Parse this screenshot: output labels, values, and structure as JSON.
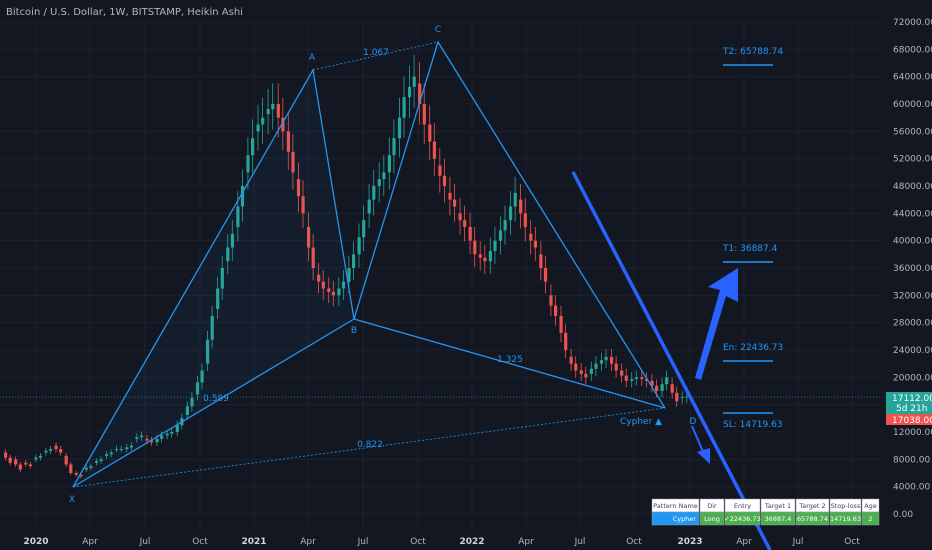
{
  "header": {
    "title": "Bitcoin / U.S. Dollar, 1W, BITSTAMP, Heikin Ashi"
  },
  "chart_data": {
    "type": "candlestick",
    "title": "Bitcoin / U.S. Dollar, 1W, BITSTAMP, Heikin Ashi",
    "y_ticks": [
      "72000.00",
      "68000.00",
      "64000.00",
      "60000.00",
      "56000.00",
      "52000.00",
      "48000.00",
      "44000.00",
      "40000.00",
      "36000.00",
      "32000.00",
      "28000.00",
      "24000.00",
      "20000.00",
      "16000.00",
      "12000.00",
      "8000.00",
      "4000.00",
      "0.00"
    ],
    "x_ticks": [
      "2020",
      "Apr",
      "Jul",
      "Oct",
      "2021",
      "Apr",
      "Jul",
      "Oct",
      "2022",
      "Apr",
      "Jul",
      "Oct",
      "2023",
      "Apr",
      "Jul",
      "Oct"
    ],
    "x_ticks_bold": [
      "2020",
      "2021",
      "2022",
      "2023"
    ],
    "ylim": [
      -2000,
      74000
    ],
    "candles_approx": [
      [
        0,
        9,
        7.5
      ],
      [
        1,
        8,
        6.5
      ],
      [
        2,
        7.5,
        7
      ],
      [
        3,
        8,
        8.5
      ],
      [
        4,
        9,
        9.5
      ],
      [
        5,
        10,
        9
      ],
      [
        6,
        8.5,
        6
      ],
      [
        7,
        6,
        5.5
      ],
      [
        8,
        6.5,
        7
      ],
      [
        9,
        7.5,
        8
      ],
      [
        10,
        8.5,
        9
      ],
      [
        11,
        9.5,
        9.5
      ],
      [
        12,
        9.5,
        10
      ],
      [
        13,
        11,
        11.5
      ],
      [
        14,
        11,
        10.5
      ],
      [
        15,
        10.5,
        11.5
      ],
      [
        16,
        11.5,
        12
      ],
      [
        17,
        12,
        14
      ],
      [
        18,
        14.5,
        17
      ],
      [
        19,
        17.5,
        21
      ],
      [
        20,
        22,
        29
      ],
      [
        21,
        30,
        36
      ],
      [
        22,
        37,
        41
      ],
      [
        23,
        42,
        48
      ],
      [
        24,
        50,
        55
      ],
      [
        25,
        56,
        58
      ],
      [
        26,
        58.5,
        60
      ],
      [
        27,
        60,
        56
      ],
      [
        28,
        56,
        50
      ],
      [
        29,
        49,
        44
      ],
      [
        30,
        42,
        36
      ],
      [
        31,
        35,
        33
      ],
      [
        32,
        33,
        32
      ],
      [
        33,
        32,
        34
      ],
      [
        34,
        34,
        38
      ],
      [
        35,
        38,
        43
      ],
      [
        36,
        44,
        48
      ],
      [
        37,
        48,
        50
      ],
      [
        38,
        50,
        55
      ],
      [
        39,
        55,
        61
      ],
      [
        40,
        61,
        64
      ],
      [
        41,
        63,
        57
      ],
      [
        42,
        57,
        52
      ],
      [
        43,
        51,
        48
      ],
      [
        44,
        47,
        45
      ],
      [
        45,
        44,
        42
      ],
      [
        46,
        42,
        38
      ],
      [
        47,
        38,
        37
      ],
      [
        48,
        37,
        40
      ],
      [
        49,
        40,
        43
      ],
      [
        50,
        43,
        47
      ],
      [
        51,
        46,
        42
      ],
      [
        52,
        41,
        39
      ],
      [
        53,
        38,
        34
      ],
      [
        54,
        32,
        29
      ],
      [
        55,
        29,
        24
      ],
      [
        56,
        23,
        21
      ],
      [
        57,
        21,
        20
      ],
      [
        58,
        20.5,
        22
      ],
      [
        59,
        22,
        23
      ],
      [
        60,
        23,
        21
      ],
      [
        61,
        21,
        19.5
      ],
      [
        62,
        19.5,
        20
      ],
      [
        63,
        20,
        19.5
      ],
      [
        64,
        19.5,
        18
      ],
      [
        65,
        18,
        20
      ],
      [
        66,
        19,
        16.5
      ],
      [
        67,
        17,
        17.2
      ]
    ],
    "pattern": {
      "name": "Cypher",
      "points": [
        {
          "label": "X",
          "value": 4000
        },
        {
          "label": "A",
          "value": 65000
        },
        {
          "label": "B",
          "value": 29000
        },
        {
          "label": "C",
          "value": 69000
        },
        {
          "label": "D",
          "value": 15500
        }
      ],
      "ratios": [
        {
          "label": "0.589"
        },
        {
          "label": "1.067"
        },
        {
          "label": "1.325"
        },
        {
          "label": "0.822"
        }
      ]
    },
    "levels": [
      {
        "label": "T2: 65788.74",
        "value": 65788.74
      },
      {
        "label": "T1: 36887.4",
        "value": 36887.4
      },
      {
        "label": "En: 22436.73",
        "value": 22436.73
      },
      {
        "label": "SL: 14719.63",
        "value": 14719.63
      }
    ],
    "current_price": {
      "value": "17112.00",
      "countdown": "5d 21h",
      "prev": "17038.00"
    }
  },
  "pattern_label": "Cypher ▲",
  "table": {
    "headers": [
      "Pattern Name",
      "Dir",
      "Entry",
      "Target 1",
      "Target 2",
      "Stop-loss",
      "Age"
    ],
    "row": [
      "Cypher",
      "Long",
      "✓22436.73",
      "36887.4",
      "65788.74",
      "14719.63",
      "2"
    ]
  },
  "colors": {
    "background": "#131722",
    "bull": "#26a69a",
    "bear": "#ef5350",
    "pattern": "#2196f3",
    "arrow": "#2962ff",
    "price_tag": "#26a69a",
    "prev_tag": "#ef5350",
    "grid": "#1e222d"
  }
}
